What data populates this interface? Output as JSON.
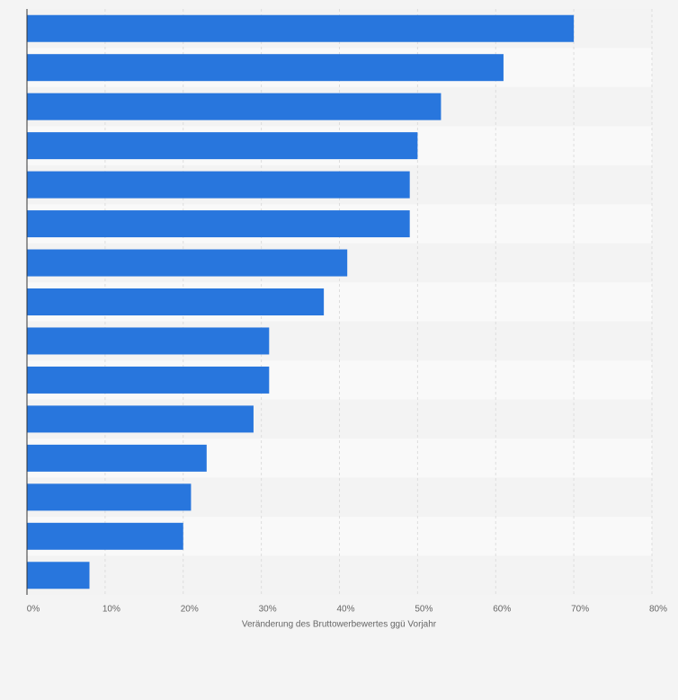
{
  "chart_data": {
    "type": "bar",
    "orientation": "horizontal",
    "x_label": "Veränderung des Bruttowerbewertes ggü Vorjahr",
    "categories": [
      null,
      null,
      null,
      null,
      null,
      null,
      null,
      null,
      null,
      null,
      null,
      null,
      null,
      null,
      null
    ],
    "values": [
      70,
      61,
      53,
      50,
      49,
      49,
      41,
      38,
      31,
      31,
      29,
      23,
      21,
      20,
      8
    ],
    "color": "#2876dd",
    "xlim": [
      0,
      80
    ],
    "xticks": [
      {
        "value": 0,
        "label": "0%"
      },
      {
        "value": 10,
        "label": "10%"
      },
      {
        "value": 20,
        "label": "20%"
      },
      {
        "value": 30,
        "label": "30%"
      },
      {
        "value": 40,
        "label": "40%"
      },
      {
        "value": 50,
        "label": "50%"
      },
      {
        "value": 60,
        "label": "60%"
      },
      {
        "value": 70,
        "label": "70%"
      },
      {
        "value": 80,
        "label": "80%"
      }
    ],
    "grid": true
  }
}
